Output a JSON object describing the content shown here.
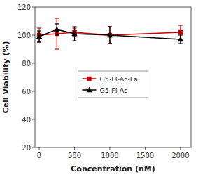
{
  "chart_data": {
    "type": "line",
    "x": [
      0,
      250,
      500,
      1000,
      2000
    ],
    "series": [
      {
        "name": "G5-FI-Ac-La",
        "color": "#cc0000",
        "marker": "square",
        "values": [
          100,
          101,
          102,
          100,
          102
        ],
        "errors": [
          5,
          11,
          3,
          6,
          5
        ]
      },
      {
        "name": "G5-FI-Ac",
        "color": "#000000",
        "marker": "triangle",
        "values": [
          99,
          104,
          101,
          100,
          97
        ],
        "errors": [
          4,
          4,
          5,
          6,
          3
        ]
      }
    ],
    "xlabel": "Concentration (nM)",
    "ylabel": "Cell Viability (%)",
    "xlim": [
      -60,
      2150
    ],
    "ylim": [
      20,
      120
    ],
    "xticks": [
      0,
      500,
      1000,
      1500,
      2000
    ],
    "yticks": [
      20,
      40,
      60,
      80,
      100,
      120
    ],
    "grid": false,
    "legend": "center"
  }
}
